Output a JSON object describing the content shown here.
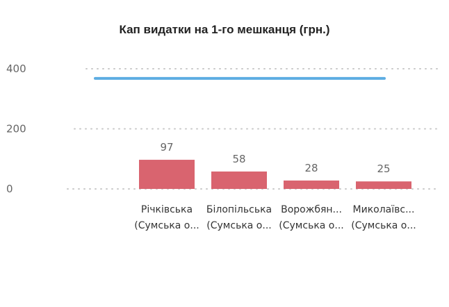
{
  "chart_data": {
    "type": "bar",
    "title": "Кап видатки на 1-го мешканця (грн.)",
    "xlabel": "",
    "ylabel": "",
    "ylim": [
      0,
      400
    ],
    "y_ticks": [
      0,
      200,
      400
    ],
    "grid": "dotted-horizontal",
    "categories": [
      [
        "Річківська",
        "(Сумська о..."
      ],
      [
        "Білопільська",
        "(Сумська о..."
      ],
      [
        "Ворожбян...",
        "(Сумська о..."
      ],
      [
        "Миколаївс...",
        "(Сумська о..."
      ]
    ],
    "series": [
      {
        "type": "bar",
        "values": [
          97,
          58,
          28,
          25
        ],
        "color": "#d9646f"
      },
      {
        "type": "reference-line",
        "value": 368,
        "color": "#5dade2"
      }
    ],
    "data_labels": [
      "97",
      "58",
      "28",
      "25"
    ]
  }
}
